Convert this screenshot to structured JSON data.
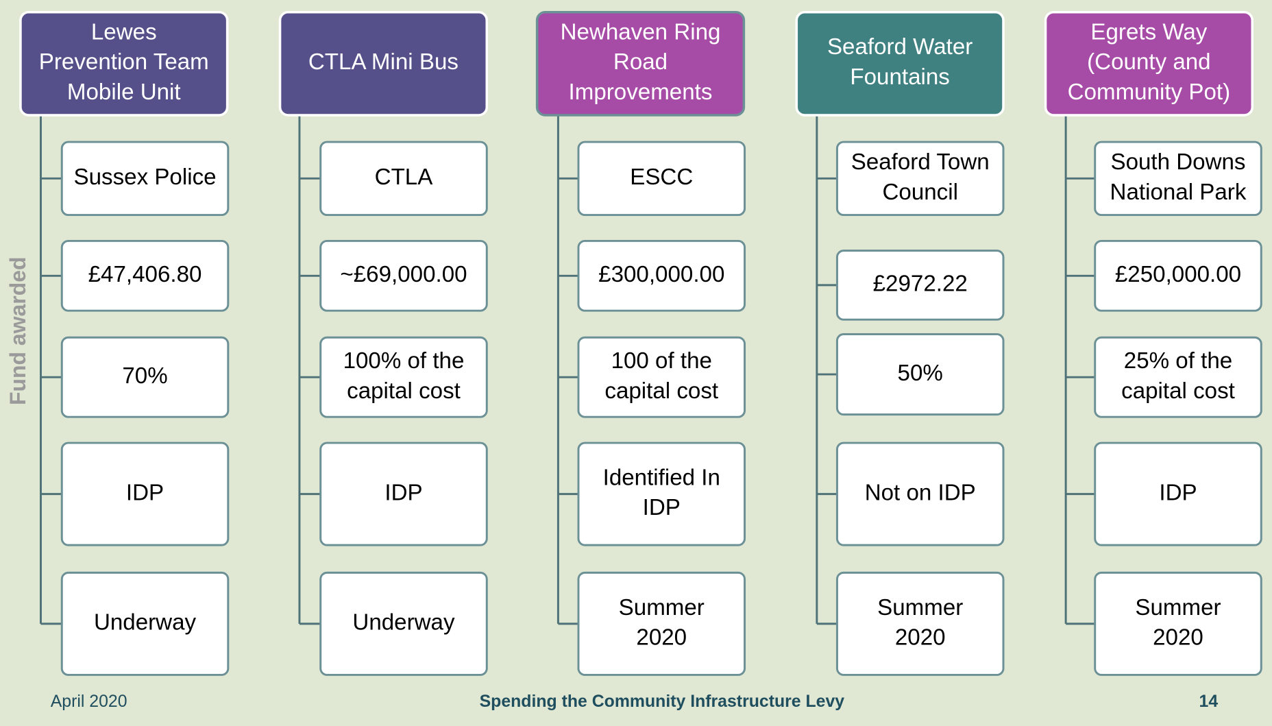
{
  "side_label": "Fund awarded",
  "columns": [
    {
      "header": [
        "Lewes",
        "Prevention Team",
        "Mobile Unit"
      ],
      "items": [
        [
          "Sussex Police"
        ],
        [
          "£47,406.80"
        ],
        [
          "70%"
        ],
        [
          "IDP"
        ],
        [
          "Underway"
        ]
      ]
    },
    {
      "header": [
        "CTLA Mini Bus"
      ],
      "items": [
        [
          "CTLA"
        ],
        [
          "~£69,000.00"
        ],
        [
          "100% of the",
          "capital cost"
        ],
        [
          "IDP"
        ],
        [
          "Underway"
        ]
      ]
    },
    {
      "header": [
        "Newhaven Ring",
        "Road",
        "Improvements"
      ],
      "items": [
        [
          "ESCC"
        ],
        [
          "£300,000.00"
        ],
        [
          "100 of the",
          "capital cost"
        ],
        [
          "Identified In",
          "IDP"
        ],
        [
          "Summer",
          "2020"
        ]
      ]
    },
    {
      "header": [
        "Seaford Water",
        "Fountains"
      ],
      "items": [
        [
          "Seaford Town",
          "Council"
        ],
        [
          "£2972.22"
        ],
        [
          "50%"
        ],
        [
          "Not on IDP"
        ],
        [
          "Summer",
          "2020"
        ]
      ]
    },
    {
      "header": [
        "Egrets Way",
        "(County and",
        "Community Pot)"
      ],
      "items": [
        [
          "South Downs",
          "National Park"
        ],
        [
          "£250,000.00"
        ],
        [
          "25% of the",
          "capital cost"
        ],
        [
          "IDP"
        ],
        [
          "Summer",
          "2020"
        ]
      ]
    }
  ],
  "footer": {
    "date": "April 2020",
    "title": "Spending the Community Infrastructure Levy",
    "page": "14"
  }
}
